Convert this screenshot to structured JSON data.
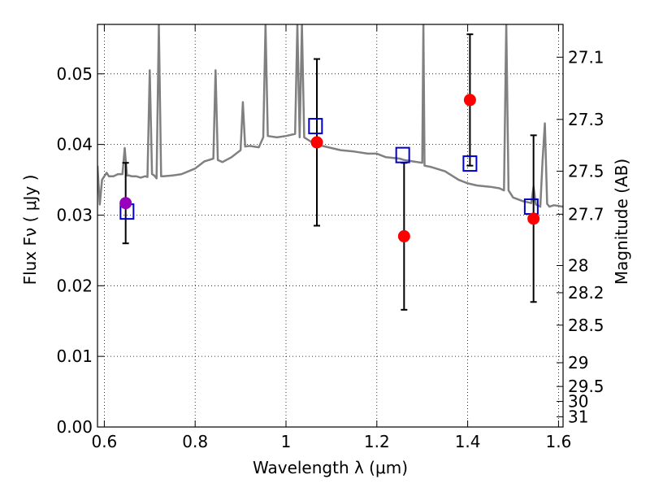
{
  "chart_data": {
    "type": "scatter",
    "xlabel": "Wavelength  λ (μm)",
    "ylabel_left": "Flux  Fν ( μJy )",
    "ylabel_right": "Magnitude (AB)",
    "xlim": [
      0.585,
      1.61
    ],
    "ylim": [
      0.0,
      0.057
    ],
    "grid": true,
    "x_ticks": [
      0.6,
      0.8,
      1.0,
      1.2,
      1.4,
      1.6
    ],
    "x_tick_labels": [
      "0.6",
      "0.8",
      "1",
      "1.2",
      "1.4",
      "1.6"
    ],
    "y_ticks": [
      0.0,
      0.01,
      0.02,
      0.03,
      0.04,
      0.05
    ],
    "y_tick_labels": [
      "0.00",
      "0.01",
      "0.02",
      "0.03",
      "0.04",
      "0.05"
    ],
    "right_ticks": [
      {
        "label": "27.1",
        "flux": 0.05236
      },
      {
        "label": "27.3",
        "flux": 0.04355
      },
      {
        "label": "27.5",
        "flux": 0.03622
      },
      {
        "label": "27.7",
        "flux": 0.03013
      },
      {
        "label": "28",
        "flux": 0.02286
      },
      {
        "label": "28.2",
        "flux": 0.01901
      },
      {
        "label": "28.5",
        "flux": 0.01442
      },
      {
        "label": "29",
        "flux": 0.0091
      },
      {
        "label": "29.5",
        "flux": 0.00574
      },
      {
        "label": "30",
        "flux": 0.00362
      },
      {
        "label": "31",
        "flux": 0.00144
      }
    ],
    "colors": {
      "sed": "#808080",
      "observed": "#ff0000",
      "observed_first": "#9900bb",
      "model": "#0000cc",
      "errorbar": "#000000"
    },
    "series": [
      {
        "role": "sed_model",
        "x": [
          0.585,
          0.59,
          0.595,
          0.6,
          0.605,
          0.61,
          0.62,
          0.63,
          0.64,
          0.645,
          0.65,
          0.655,
          0.66,
          0.67,
          0.68,
          0.69,
          0.695,
          0.7,
          0.705,
          0.71,
          0.715,
          0.72,
          0.725,
          0.73,
          0.75,
          0.77,
          0.8,
          0.82,
          0.84,
          0.845,
          0.85,
          0.86,
          0.88,
          0.9,
          0.905,
          0.91,
          0.92,
          0.94,
          0.95,
          0.955,
          0.96,
          0.98,
          1.0,
          1.02,
          1.025,
          1.03,
          1.035,
          1.04,
          1.06,
          1.08,
          1.1,
          1.12,
          1.15,
          1.18,
          1.2,
          1.22,
          1.25,
          1.26,
          1.28,
          1.3,
          1.3025,
          1.305,
          1.32,
          1.35,
          1.38,
          1.4,
          1.42,
          1.45,
          1.47,
          1.48,
          1.485,
          1.49,
          1.5,
          1.52,
          1.54,
          1.545,
          1.55,
          1.56,
          1.565,
          1.57,
          1.575,
          1.58,
          1.59,
          1.61
        ],
        "y": [
          0.037,
          0.0315,
          0.035,
          0.0355,
          0.036,
          0.0355,
          0.0355,
          0.0358,
          0.0358,
          0.0395,
          0.0356,
          0.0356,
          0.0355,
          0.0355,
          0.0353,
          0.0355,
          0.0354,
          0.0505,
          0.0358,
          0.0356,
          0.0352,
          0.057,
          0.0355,
          0.0355,
          0.0356,
          0.0358,
          0.0366,
          0.0376,
          0.038,
          0.0505,
          0.0378,
          0.0375,
          0.0382,
          0.0392,
          0.046,
          0.0397,
          0.0398,
          0.0396,
          0.041,
          0.057,
          0.0412,
          0.041,
          0.0412,
          0.0415,
          0.057,
          0.041,
          0.057,
          0.041,
          0.0402,
          0.0398,
          0.0395,
          0.0392,
          0.039,
          0.0387,
          0.0387,
          0.0382,
          0.038,
          0.0378,
          0.0376,
          0.0374,
          0.057,
          0.037,
          0.0368,
          0.0362,
          0.035,
          0.0345,
          0.0342,
          0.034,
          0.0338,
          0.0335,
          0.057,
          0.0335,
          0.0325,
          0.032,
          0.0317,
          0.034,
          0.0315,
          0.0312,
          0.0378,
          0.043,
          0.0316,
          0.0312,
          0.0314,
          0.0312
        ]
      },
      {
        "role": "observed_flux",
        "x": [
          0.647,
          1.068,
          1.26,
          1.405,
          1.545
        ],
        "y": [
          0.0317,
          0.0403,
          0.027,
          0.0463,
          0.0295
        ],
        "yerr": [
          0.0057,
          0.0118,
          0.0104,
          0.0093,
          0.0118
        ]
      },
      {
        "role": "model_flux",
        "x": [
          0.65,
          1.065,
          1.257,
          1.405,
          1.54
        ],
        "y": [
          0.0305,
          0.0426,
          0.0385,
          0.0373,
          0.0312
        ]
      }
    ]
  }
}
